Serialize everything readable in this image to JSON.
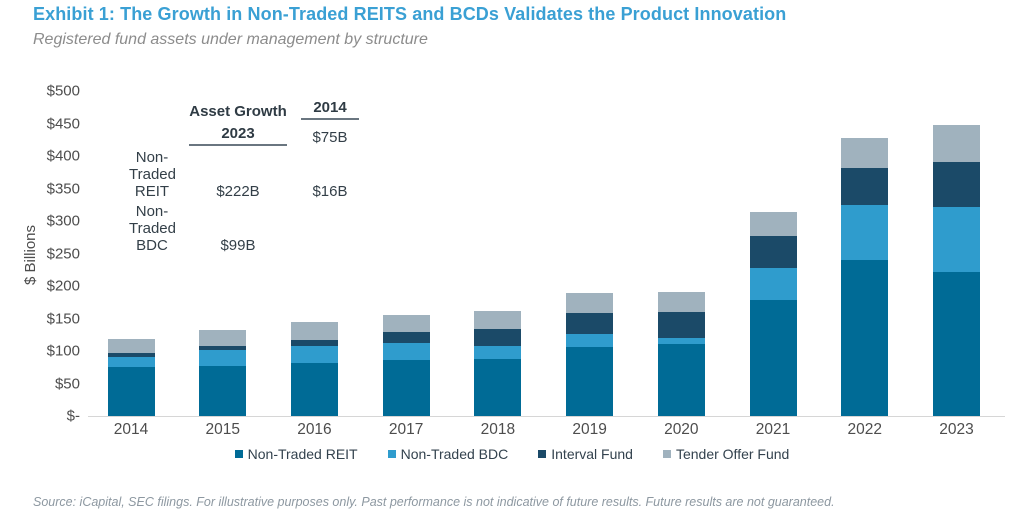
{
  "header": {
    "title": "Exhibit 1: The Growth in Non-Traded REITS and BCDs Validates the Product Innovation",
    "subtitle": "Registered fund assets under management by structure"
  },
  "annotation": {
    "title": "Asset Growth",
    "col_left_header": "2014",
    "col_right_header": "2023",
    "rows": [
      {
        "left": "$75B",
        "label": "Non-Traded REIT",
        "right": "$222B"
      },
      {
        "left": "$16B",
        "label": "Non-Traded BDC",
        "right": "$99B"
      }
    ]
  },
  "chart_data": {
    "type": "bar",
    "stacked": true,
    "title": "Registered fund assets under management by structure",
    "xlabel": "",
    "ylabel": "$ Billions",
    "ylim": [
      0,
      500
    ],
    "ytick_step": 50,
    "ytick_labels_bottom_to_top": [
      "$-",
      "$50",
      "$100",
      "$150",
      "$200",
      "$250",
      "$300",
      "$350",
      "$400",
      "$450",
      "$500"
    ],
    "grid": false,
    "legend_position": "bottom",
    "categories": [
      "2014",
      "2015",
      "2016",
      "2017",
      "2018",
      "2019",
      "2020",
      "2021",
      "2022",
      "2023"
    ],
    "series": [
      {
        "name": "Non-Traded REIT",
        "color": "#006B96",
        "values": [
          75,
          77,
          81,
          86,
          87,
          106,
          111,
          179,
          240,
          222
        ]
      },
      {
        "name": "Non-Traded BDC",
        "color": "#2F9CCD",
        "values": [
          16,
          25,
          26,
          26,
          20,
          20,
          9,
          48,
          84,
          99
        ]
      },
      {
        "name": "Interval Fund",
        "color": "#1B4A68",
        "values": [
          6,
          6,
          10,
          18,
          27,
          32,
          40,
          50,
          58,
          70
        ]
      },
      {
        "name": "Tender Offer Fund",
        "color": "#A0B2BE",
        "values": [
          21,
          25,
          28,
          26,
          28,
          31,
          31,
          37,
          46,
          56
        ]
      }
    ]
  },
  "footer": {
    "source": "Source: iCapital, SEC filings. For illustrative purposes only. Past performance is not indicative of future results. Future results are not guaranteed."
  }
}
